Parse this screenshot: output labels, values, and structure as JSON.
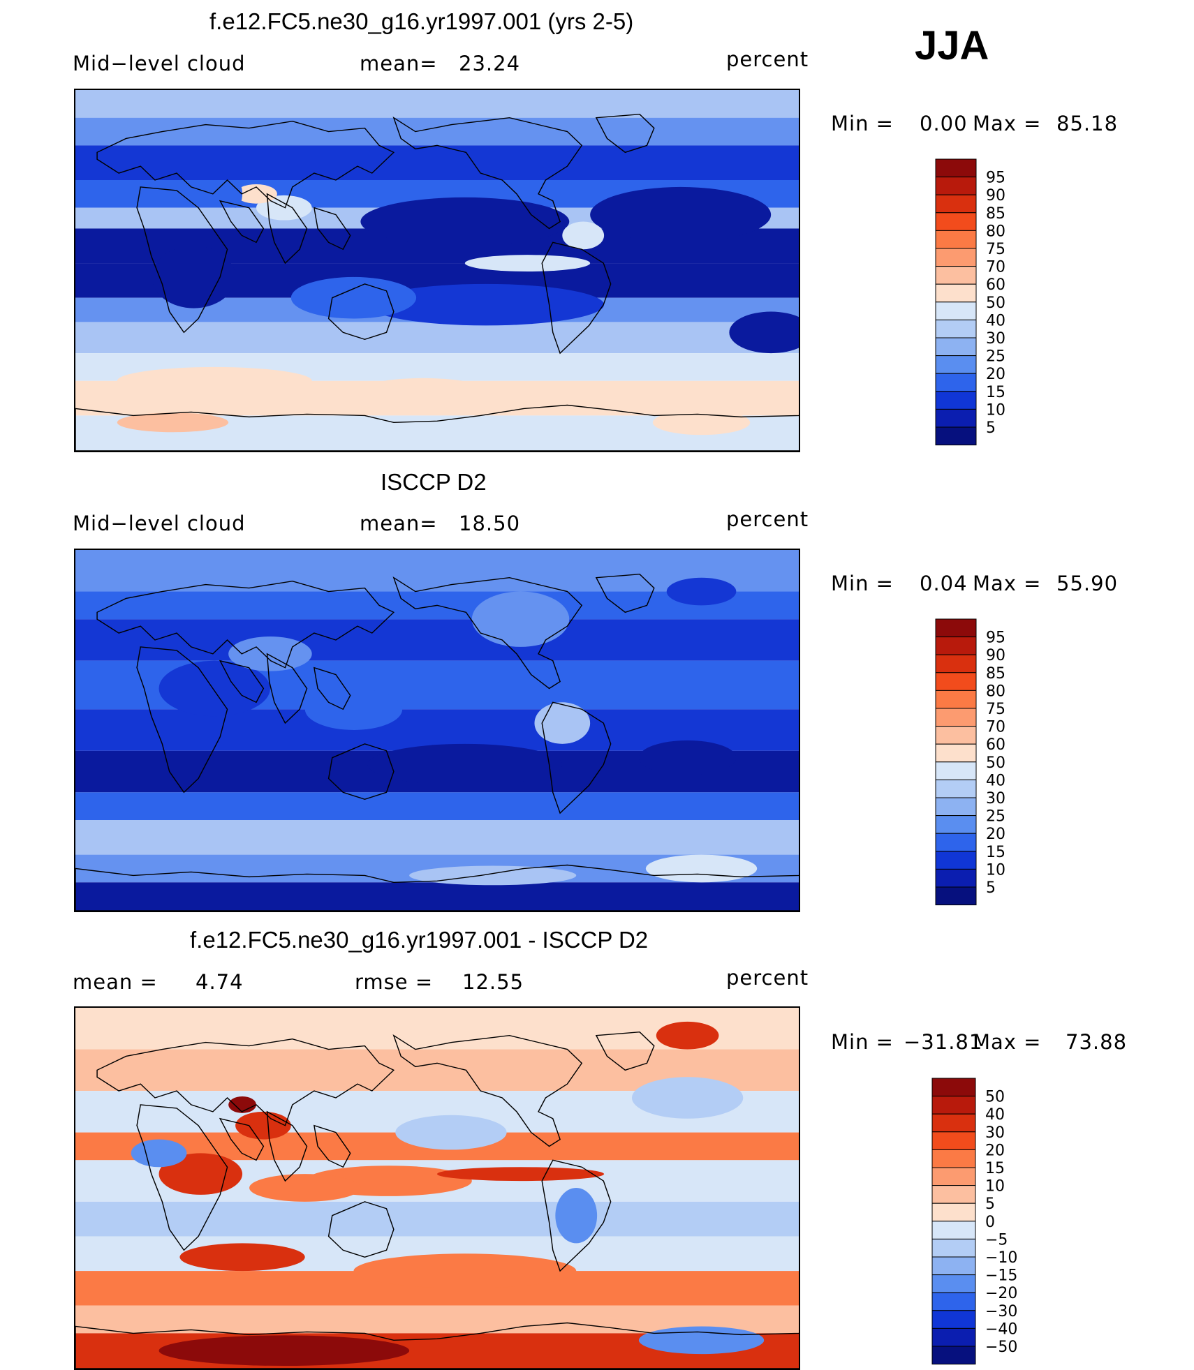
{
  "season": "JJA",
  "panels": [
    {
      "title": "f.e12.FC5.ne30_g16.yr1997.001 (yrs 2-5)",
      "left_label": "Mid−level cloud",
      "stat_label": "mean=",
      "stat_value": "23.24",
      "units": "percent",
      "min_label": "Min =",
      "min_value": "0.00",
      "max_label": "Max =",
      "max_value": "85.18",
      "colorbar_ticks": [
        "95",
        "90",
        "85",
        "80",
        "75",
        "70",
        "60",
        "50",
        "40",
        "30",
        "25",
        "20",
        "15",
        "10",
        "5"
      ],
      "colorbar_colors": [
        "#8c0a0a",
        "#b81a0c",
        "#d9300f",
        "#f24c1c",
        "#fb7a45",
        "#fc9b70",
        "#fcbfa0",
        "#fde0cc",
        "#d7e6f8",
        "#b3cdf5",
        "#8db2f2",
        "#5a8ef0",
        "#2e64eb",
        "#1036d6",
        "#0b1eb0",
        "#06107e"
      ]
    },
    {
      "title": "ISCCP D2",
      "left_label": "Mid−level cloud",
      "stat_label": "mean=",
      "stat_value": "18.50",
      "units": "percent",
      "min_label": "Min =",
      "min_value": "0.04",
      "max_label": "Max =",
      "max_value": "55.90",
      "colorbar_ticks": [
        "95",
        "90",
        "85",
        "80",
        "75",
        "70",
        "60",
        "50",
        "40",
        "30",
        "25",
        "20",
        "15",
        "10",
        "5"
      ],
      "colorbar_colors": [
        "#8c0a0a",
        "#b81a0c",
        "#d9300f",
        "#f24c1c",
        "#fb7a45",
        "#fc9b70",
        "#fcbfa0",
        "#fde0cc",
        "#d7e6f8",
        "#b3cdf5",
        "#8db2f2",
        "#5a8ef0",
        "#2e64eb",
        "#1036d6",
        "#0b1eb0",
        "#06107e"
      ]
    },
    {
      "title": "f.e12.FC5.ne30_g16.yr1997.001 - ISCCP D2",
      "left_label": "mean =",
      "left_value": "4.74",
      "stat_label": "rmse =",
      "stat_value": "12.55",
      "units": "percent",
      "min_label": "Min =",
      "min_value": "−31.81",
      "max_label": "Max =",
      "max_value": "73.88",
      "colorbar_ticks": [
        "50",
        "40",
        "30",
        "20",
        "15",
        "10",
        "5",
        "0",
        "−5",
        "−10",
        "−15",
        "−20",
        "−30",
        "−40",
        "−50"
      ],
      "colorbar_colors": [
        "#8c0a0a",
        "#b81a0c",
        "#d9300f",
        "#f24c1c",
        "#fb7a45",
        "#fc9b70",
        "#fcbfa0",
        "#fde0cc",
        "#d7e6f8",
        "#b3cdf5",
        "#8db2f2",
        "#5a8ef0",
        "#2e64eb",
        "#1036d6",
        "#0b1eb0",
        "#06107e"
      ]
    }
  ],
  "map_palettes": {
    "model": [
      "#0a1a9e",
      "#1437d4",
      "#2e64eb",
      "#6592f0",
      "#a9c4f4",
      "#d7e6f8",
      "#fde0cc",
      "#fcbfa0"
    ],
    "obs": [
      "#0a1a9e",
      "#1437d4",
      "#2e64eb",
      "#6592f0",
      "#a9c4f4",
      "#d7e6f8",
      "#fde0cc"
    ],
    "diff": [
      "#1437d4",
      "#5a8ef0",
      "#b3cdf5",
      "#d7e6f8",
      "#fde0cc",
      "#fcbfa0",
      "#fb7a45",
      "#d9300f",
      "#8c0a0a"
    ]
  }
}
